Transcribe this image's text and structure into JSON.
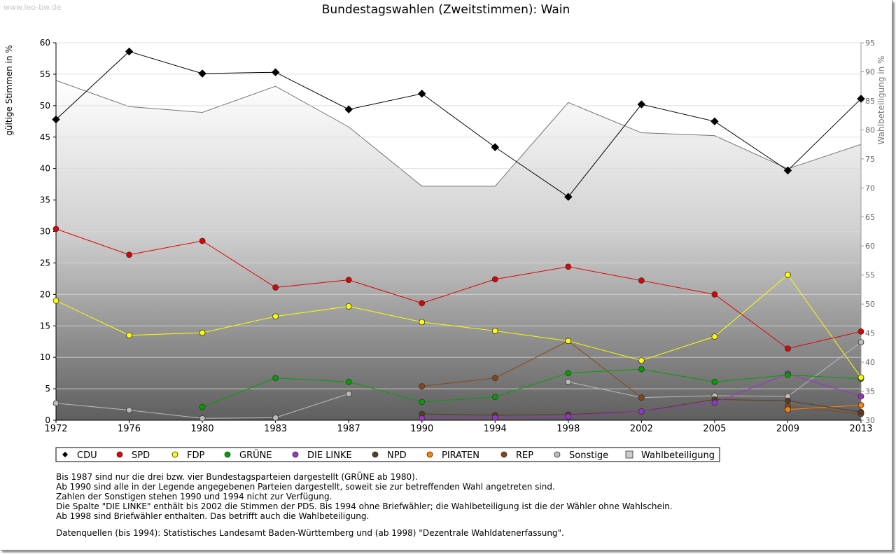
{
  "watermark": "www.leo-bw.de",
  "chart_data": {
    "type": "line",
    "title": "Bundestagswahlen (Zweitstimmen): Wain",
    "ylabel": "gültige Stimmen in %",
    "y2label": "Wahlbeteiligung in %",
    "ylim": [
      0,
      60
    ],
    "y2lim": [
      30,
      95
    ],
    "yticks": [
      "0",
      "5",
      "10",
      "15",
      "20",
      "25",
      "30",
      "35",
      "40",
      "45",
      "50",
      "55",
      "60"
    ],
    "y2ticks": [
      "30",
      "35",
      "40",
      "45",
      "50",
      "55",
      "60",
      "65",
      "70",
      "75",
      "80",
      "85",
      "90",
      "95"
    ],
    "categories": [
      "1972",
      "1976",
      "1980",
      "1983",
      "1987",
      "1990",
      "1994",
      "1998",
      "2002",
      "2005",
      "2009",
      "2013"
    ],
    "grid": true,
    "legend_position": "bottom",
    "series": [
      {
        "name": "CDU",
        "color": "#000000",
        "values": [
          47.8,
          58.6,
          55.1,
          55.3,
          49.4,
          51.9,
          43.4,
          35.5,
          50.2,
          47.5,
          39.7,
          51.1
        ]
      },
      {
        "name": "SPD",
        "color": "#e00000",
        "values": [
          30.4,
          26.3,
          28.5,
          21.1,
          22.3,
          18.6,
          22.4,
          24.4,
          22.2,
          20.0,
          11.4,
          14.1
        ]
      },
      {
        "name": "FDP",
        "color": "#ffff00",
        "values": [
          19.0,
          13.5,
          13.9,
          16.5,
          18.1,
          15.6,
          14.2,
          12.6,
          9.5,
          13.3,
          23.1,
          6.8
        ]
      },
      {
        "name": "GRÜNE",
        "color": "#00a000",
        "values": [
          null,
          null,
          2.1,
          6.7,
          6.1,
          2.9,
          3.7,
          7.5,
          8.1,
          6.1,
          7.2,
          6.6
        ]
      },
      {
        "name": "DIE LINKE",
        "color": "#9933cc",
        "values": [
          null,
          null,
          null,
          null,
          null,
          0.3,
          0.4,
          0.6,
          1.4,
          2.8,
          7.4,
          3.8
        ]
      },
      {
        "name": "NPD",
        "color": "#5a3a22",
        "values": [
          null,
          null,
          null,
          null,
          null,
          1.0,
          0.8,
          0.9,
          1.4,
          3.3,
          3.1,
          1.3
        ]
      },
      {
        "name": "PIRATEN",
        "color": "#ff8000",
        "values": [
          null,
          null,
          null,
          null,
          null,
          null,
          null,
          null,
          null,
          null,
          1.7,
          2.4
        ]
      },
      {
        "name": "REP",
        "color": "#8b4513",
        "values": [
          null,
          null,
          null,
          null,
          null,
          5.4,
          6.7,
          12.6,
          3.6,
          null,
          2.2,
          1.0
        ]
      },
      {
        "name": "Sonstige",
        "color": "#bbbbbb",
        "values": [
          2.7,
          1.6,
          0.3,
          0.4,
          4.2,
          null,
          null,
          6.1,
          3.6,
          3.9,
          3.8,
          12.4
        ]
      }
    ],
    "turnout": {
      "name": "Wahlbeteiligung",
      "values": [
        88.5,
        84.0,
        83.0,
        87.5,
        80.5,
        70.3,
        70.3,
        84.7,
        79.5,
        79.0,
        73.3,
        77.5
      ]
    }
  },
  "notes": [
    "Bis 1987 sind nur die drei bzw. vier Bundestagsparteien dargestellt (GRÜNE ab 1980).",
    "Ab 1990 sind alle in der Legende angegebenen Parteien dargestellt, soweit sie zur betreffenden Wahl angetreten sind.",
    "Zahlen der Sonstigen stehen 1990 und 1994 nicht zur Verfügung.",
    "Die Spalte \"DIE LINKE\" enthält bis 2002 die Stimmen der PDS. Bis 1994 ohne Briefwähler; die Wahlbeteiligung ist die der Wähler ohne Wahlschein.",
    "Ab 1998 sind Briefwähler enthalten. Das betrifft auch die Wahlbeteiligung."
  ],
  "source": "Datenquellen (bis 1994): Statistisches Landesamt Baden-Württemberg und (ab 1998) \"Dezentrale Wahldatenerfassung\"."
}
